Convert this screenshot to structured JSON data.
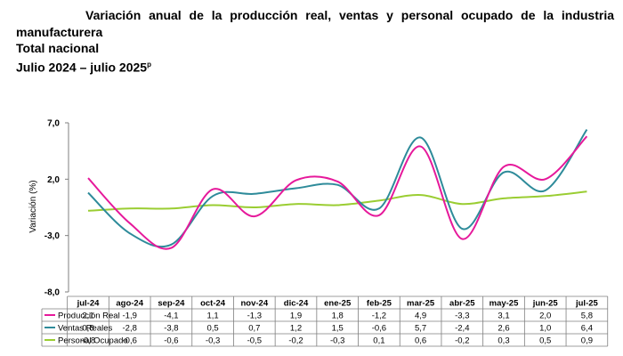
{
  "title": {
    "line1": "Variación anual de la producción real, ventas y personal ocupado de la industria",
    "line2": "manufacturera",
    "line3": "Total nacional",
    "line4": "Julio 2024 – julio 2025",
    "line4_sup": "p"
  },
  "chart_data": {
    "type": "line",
    "ylabel": "Variación (%)",
    "ylim": [
      -8.0,
      7.0
    ],
    "yticks": [
      7.0,
      2.0,
      -3.0,
      -8.0
    ],
    "ytick_labels": [
      "7,0",
      "2,0",
      "-3,0",
      "-8,0"
    ],
    "categories": [
      "jul-24",
      "ago-24",
      "sep-24",
      "oct-24",
      "nov-24",
      "dic-24",
      "ene-25",
      "feb-25",
      "mar-25",
      "abr-25",
      "may-25",
      "jun-25",
      "jul-25"
    ],
    "grid": false,
    "legend": "table-below",
    "series": [
      {
        "name": "Producción Real",
        "color": "#e6199b",
        "values": [
          2.1,
          -1.9,
          -4.1,
          1.1,
          -1.3,
          1.9,
          1.8,
          -1.2,
          4.9,
          -3.3,
          3.1,
          2.0,
          5.8
        ],
        "labels": [
          "2,1",
          "-1,9",
          "-4,1",
          "1,1",
          "-1,3",
          "1,9",
          "1,8",
          "-1,2",
          "4,9",
          "-3,3",
          "3,1",
          "2,0",
          "5,8"
        ]
      },
      {
        "name": "Ventas Reales",
        "color": "#2e8b9a",
        "values": [
          0.8,
          -2.8,
          -3.8,
          0.5,
          0.7,
          1.2,
          1.5,
          -0.6,
          5.7,
          -2.4,
          2.6,
          1.0,
          6.4
        ],
        "labels": [
          "0,8",
          "-2,8",
          "-3,8",
          "0,5",
          "0,7",
          "1,2",
          "1,5",
          "-0,6",
          "5,7",
          "-2,4",
          "2,6",
          "1,0",
          "6,4"
        ]
      },
      {
        "name": "Personal Ocupado",
        "color": "#9acd32",
        "values": [
          -0.8,
          -0.6,
          -0.6,
          -0.3,
          -0.5,
          -0.2,
          -0.3,
          0.1,
          0.6,
          -0.2,
          0.3,
          0.5,
          0.9
        ],
        "labels": [
          "-0,8",
          "-0,6",
          "-0,6",
          "-0,3",
          "-0,5",
          "-0,2",
          "-0,3",
          "0,1",
          "0,6",
          "-0,2",
          "0,3",
          "0,5",
          "0,9"
        ]
      }
    ]
  }
}
